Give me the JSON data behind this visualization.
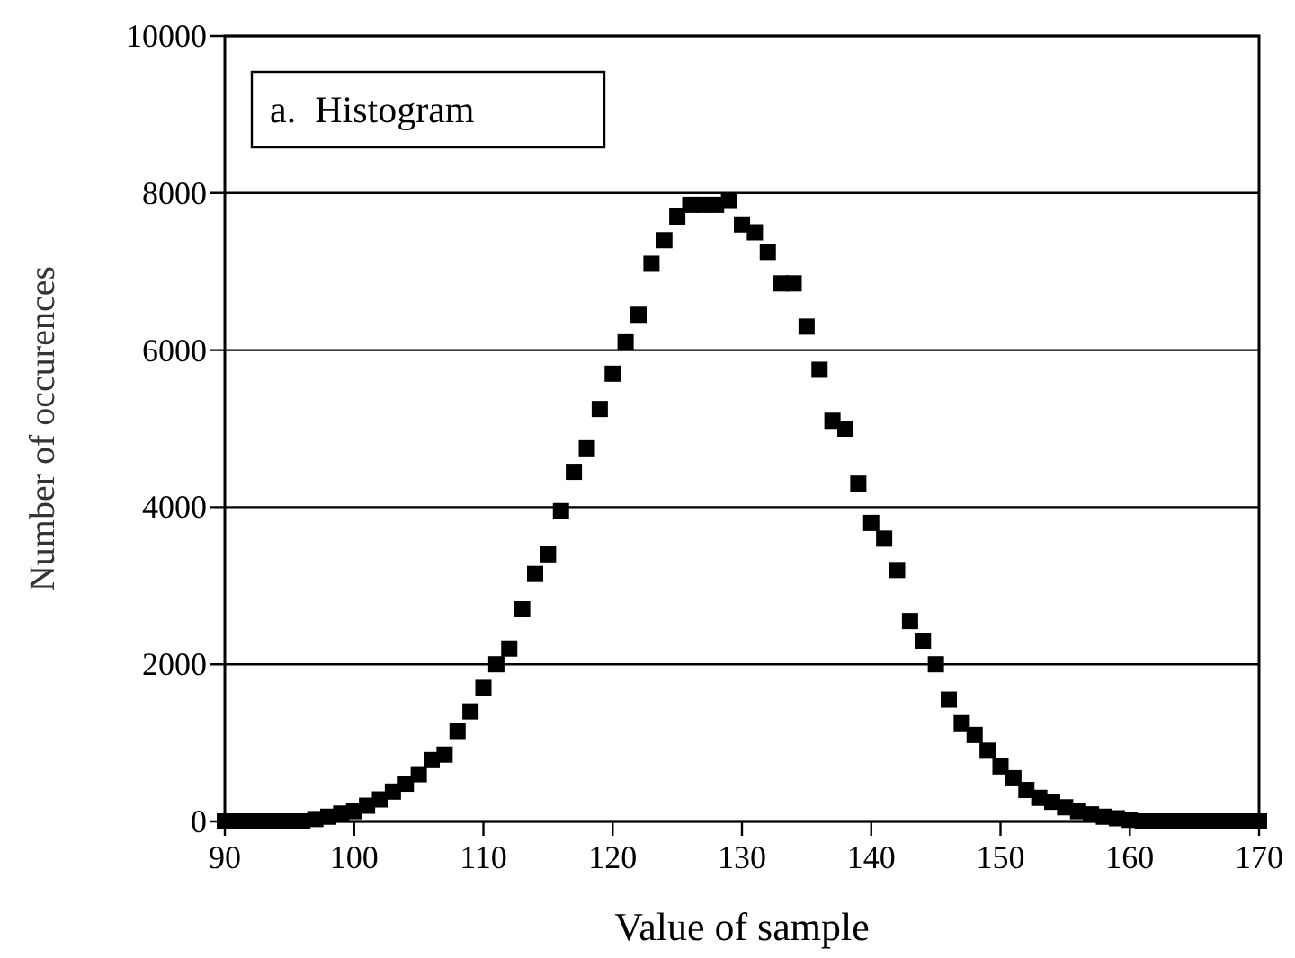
{
  "chart_data": {
    "type": "scatter",
    "xlabel": "Value of sample",
    "ylabel": "Number of occurences",
    "annotations": [
      "a.  Histogram"
    ],
    "x": [
      90,
      91,
      92,
      93,
      94,
      95,
      96,
      97,
      98,
      99,
      100,
      101,
      102,
      103,
      104,
      105,
      106,
      107,
      108,
      109,
      110,
      111,
      112,
      113,
      114,
      115,
      116,
      117,
      118,
      119,
      120,
      121,
      122,
      123,
      124,
      125,
      126,
      127,
      128,
      129,
      130,
      131,
      132,
      133,
      134,
      135,
      136,
      137,
      138,
      139,
      140,
      141,
      142,
      143,
      144,
      145,
      146,
      147,
      148,
      149,
      150,
      151,
      152,
      153,
      154,
      155,
      156,
      157,
      158,
      159,
      160,
      161,
      162,
      163,
      164,
      165,
      166,
      167,
      168,
      169,
      170
    ],
    "series": [
      {
        "color": "#000000",
        "values": [
          0,
          0,
          0,
          0,
          0,
          0,
          0,
          30,
          60,
          100,
          130,
          200,
          280,
          380,
          480,
          600,
          780,
          850,
          1150,
          1400,
          1700,
          2000,
          2200,
          2700,
          3150,
          3400,
          3950,
          4450,
          4750,
          5250,
          5700,
          6100,
          6450,
          7100,
          7400,
          7700,
          7850,
          7850,
          7850,
          7900,
          7600,
          7500,
          7250,
          6850,
          6850,
          6300,
          5750,
          5100,
          5000,
          4300,
          3800,
          3600,
          3200,
          2550,
          2300,
          2000,
          1550,
          1250,
          1100,
          900,
          700,
          550,
          400,
          300,
          250,
          180,
          130,
          90,
          60,
          40,
          20,
          0,
          0,
          0,
          0,
          0,
          0,
          0,
          0,
          0,
          0
        ]
      }
    ],
    "xlim": [
      90,
      170
    ],
    "xticks": [
      90,
      100,
      110,
      120,
      130,
      140,
      150,
      160,
      170
    ],
    "ylim": [
      0,
      10000
    ],
    "yticks": [
      0,
      2000,
      4000,
      6000,
      8000,
      10000
    ],
    "grid": "y",
    "marker": "square"
  }
}
